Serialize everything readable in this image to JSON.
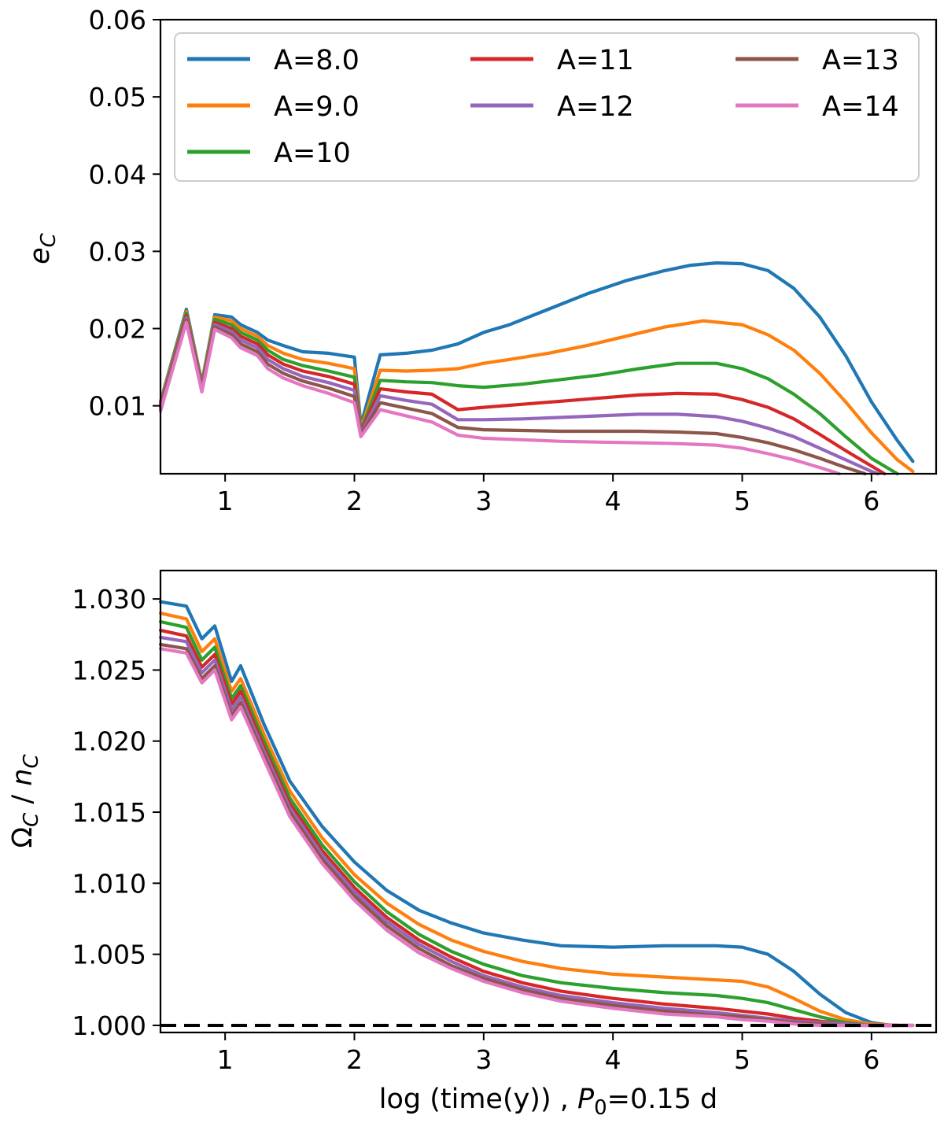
{
  "chart_data": [
    {
      "type": "line",
      "title": "",
      "xlabel": "",
      "ylabel": "e_C",
      "xlim": [
        0.5,
        6.5
      ],
      "ylim": [
        0.0012,
        0.06
      ],
      "xticks": [
        1,
        2,
        3,
        4,
        5,
        6
      ],
      "yticks": [
        0.01,
        0.02,
        0.03,
        0.04,
        0.05,
        0.06
      ],
      "ytick_labels": [
        "0.01",
        "0.02",
        "0.03",
        "0.04",
        "0.05",
        "0.06"
      ],
      "legend": {
        "location": "upper",
        "columns": 3
      },
      "grid": false,
      "series": [
        {
          "name": "A=8.0",
          "color": "#1f77b4",
          "x": [
            0.5,
            0.7,
            0.82,
            0.92,
            1.05,
            1.12,
            1.25,
            1.33,
            1.45,
            1.6,
            1.8,
            2.0,
            2.05,
            2.2,
            2.4,
            2.6,
            2.8,
            3.0,
            3.2,
            3.5,
            3.8,
            4.1,
            4.4,
            4.6,
            4.8,
            5.0,
            5.2,
            5.4,
            5.6,
            5.8,
            6.0,
            6.2,
            6.32
          ],
          "y": [
            0.0105,
            0.0225,
            0.013,
            0.0218,
            0.0215,
            0.0205,
            0.0195,
            0.0185,
            0.0178,
            0.017,
            0.0168,
            0.0163,
            0.0075,
            0.0166,
            0.0168,
            0.0172,
            0.018,
            0.0195,
            0.0205,
            0.0225,
            0.0245,
            0.0262,
            0.0275,
            0.0282,
            0.0285,
            0.0284,
            0.0275,
            0.0252,
            0.0215,
            0.0165,
            0.0105,
            0.0055,
            0.0028
          ]
        },
        {
          "name": "A=9.0",
          "color": "#ff7f0e",
          "x": [
            0.5,
            0.7,
            0.82,
            0.92,
            1.05,
            1.12,
            1.25,
            1.33,
            1.45,
            1.6,
            1.8,
            2.0,
            2.05,
            2.2,
            2.4,
            2.6,
            2.8,
            3.0,
            3.2,
            3.5,
            3.8,
            4.1,
            4.4,
            4.7,
            5.0,
            5.2,
            5.4,
            5.6,
            5.8,
            6.0,
            6.2,
            6.32
          ],
          "y": [
            0.0103,
            0.0222,
            0.0128,
            0.0215,
            0.021,
            0.02,
            0.019,
            0.0178,
            0.0168,
            0.016,
            0.0155,
            0.0148,
            0.007,
            0.0146,
            0.0145,
            0.0146,
            0.0148,
            0.0155,
            0.016,
            0.0168,
            0.0178,
            0.019,
            0.0202,
            0.021,
            0.0205,
            0.0192,
            0.0172,
            0.0142,
            0.0105,
            0.0065,
            0.003,
            0.0015
          ]
        },
        {
          "name": "A=10",
          "color": "#2ca02c",
          "x": [
            0.5,
            0.7,
            0.82,
            0.92,
            1.05,
            1.12,
            1.25,
            1.33,
            1.45,
            1.6,
            1.8,
            2.0,
            2.05,
            2.2,
            2.4,
            2.6,
            2.8,
            3.0,
            3.3,
            3.6,
            3.9,
            4.2,
            4.5,
            4.8,
            5.0,
            5.2,
            5.4,
            5.6,
            5.8,
            6.0,
            6.2
          ],
          "y": [
            0.0101,
            0.022,
            0.0126,
            0.0212,
            0.0205,
            0.0195,
            0.0185,
            0.0172,
            0.016,
            0.0152,
            0.0145,
            0.0137,
            0.0068,
            0.0133,
            0.0131,
            0.013,
            0.0126,
            0.0124,
            0.0128,
            0.0134,
            0.014,
            0.0148,
            0.0155,
            0.0155,
            0.0148,
            0.0135,
            0.0115,
            0.009,
            0.006,
            0.0032,
            0.0012
          ]
        },
        {
          "name": "A=11",
          "color": "#d62728",
          "x": [
            0.5,
            0.7,
            0.82,
            0.92,
            1.05,
            1.12,
            1.25,
            1.33,
            1.45,
            1.6,
            1.8,
            2.0,
            2.05,
            2.2,
            2.4,
            2.6,
            2.8,
            3.0,
            3.3,
            3.6,
            3.9,
            4.2,
            4.5,
            4.8,
            5.0,
            5.2,
            5.4,
            5.6,
            5.8,
            6.0,
            6.1
          ],
          "y": [
            0.0099,
            0.0217,
            0.0124,
            0.0208,
            0.02,
            0.019,
            0.018,
            0.0166,
            0.0154,
            0.0145,
            0.0138,
            0.0128,
            0.0066,
            0.0122,
            0.0118,
            0.0115,
            0.0095,
            0.0098,
            0.0102,
            0.0106,
            0.011,
            0.0114,
            0.0116,
            0.0115,
            0.0108,
            0.0098,
            0.0083,
            0.0063,
            0.0042,
            0.0022,
            0.0012
          ]
        },
        {
          "name": "A=12",
          "color": "#9467bd",
          "x": [
            0.5,
            0.7,
            0.82,
            0.92,
            1.05,
            1.12,
            1.25,
            1.33,
            1.45,
            1.6,
            1.8,
            2.0,
            2.05,
            2.2,
            2.4,
            2.6,
            2.8,
            3.0,
            3.3,
            3.6,
            3.9,
            4.2,
            4.5,
            4.8,
            5.0,
            5.2,
            5.4,
            5.6,
            5.8,
            6.0,
            6.05
          ],
          "y": [
            0.0097,
            0.0214,
            0.0122,
            0.0205,
            0.0196,
            0.0185,
            0.0175,
            0.016,
            0.0148,
            0.0138,
            0.013,
            0.012,
            0.0064,
            0.0113,
            0.0107,
            0.0102,
            0.0082,
            0.0082,
            0.0083,
            0.0085,
            0.0087,
            0.0089,
            0.0089,
            0.0086,
            0.008,
            0.0071,
            0.006,
            0.0045,
            0.003,
            0.0015,
            0.0012
          ]
        },
        {
          "name": "A=13",
          "color": "#8c564b",
          "x": [
            0.5,
            0.7,
            0.82,
            0.92,
            1.05,
            1.12,
            1.25,
            1.33,
            1.45,
            1.6,
            1.8,
            2.0,
            2.05,
            2.2,
            2.4,
            2.6,
            2.8,
            3.0,
            3.3,
            3.6,
            3.9,
            4.2,
            4.5,
            4.8,
            5.0,
            5.2,
            5.4,
            5.6,
            5.8,
            5.95
          ],
          "y": [
            0.0095,
            0.0211,
            0.012,
            0.0202,
            0.0192,
            0.018,
            0.017,
            0.0154,
            0.0142,
            0.0132,
            0.0123,
            0.0112,
            0.0062,
            0.0104,
            0.0097,
            0.009,
            0.0072,
            0.0069,
            0.0068,
            0.0067,
            0.0067,
            0.0067,
            0.0066,
            0.0064,
            0.0059,
            0.0052,
            0.0043,
            0.0032,
            0.002,
            0.0012
          ]
        },
        {
          "name": "A=14",
          "color": "#e377c2",
          "x": [
            0.5,
            0.7,
            0.82,
            0.92,
            1.05,
            1.12,
            1.25,
            1.33,
            1.45,
            1.6,
            1.8,
            2.0,
            2.05,
            2.2,
            2.4,
            2.6,
            2.8,
            3.0,
            3.3,
            3.6,
            3.9,
            4.2,
            4.5,
            4.8,
            5.0,
            5.2,
            5.4,
            5.6,
            5.75
          ],
          "y": [
            0.0093,
            0.0208,
            0.0118,
            0.0199,
            0.0188,
            0.0175,
            0.0165,
            0.0148,
            0.0136,
            0.0126,
            0.0116,
            0.0104,
            0.006,
            0.0095,
            0.0087,
            0.0079,
            0.0062,
            0.0058,
            0.0056,
            0.0054,
            0.0053,
            0.0052,
            0.0051,
            0.0049,
            0.0045,
            0.0038,
            0.003,
            0.002,
            0.0012
          ]
        }
      ]
    },
    {
      "type": "line",
      "title": "",
      "xlabel": "log (time(y)) , P0=0.15 d",
      "ylabel": "ΩC / nC",
      "xlim": [
        0.5,
        6.5
      ],
      "ylim": [
        0.9995,
        1.032
      ],
      "xticks": [
        1,
        2,
        3,
        4,
        5,
        6
      ],
      "yticks": [
        1.0,
        1.005,
        1.01,
        1.015,
        1.02,
        1.025,
        1.03
      ],
      "ytick_labels": [
        "1.000",
        "1.005",
        "1.010",
        "1.015",
        "1.020",
        "1.025",
        "1.030"
      ],
      "reference_line": {
        "y": 1.0,
        "style": "dashed",
        "color": "#000000"
      },
      "grid": false,
      "series": [
        {
          "name": "A=8.0",
          "color": "#1f77b4",
          "x": [
            0.5,
            0.7,
            0.82,
            0.92,
            1.05,
            1.12,
            1.3,
            1.5,
            1.75,
            2.0,
            2.25,
            2.5,
            2.75,
            3.0,
            3.3,
            3.6,
            4.0,
            4.4,
            4.8,
            5.0,
            5.2,
            5.4,
            5.6,
            5.8,
            6.0,
            6.15,
            6.32
          ],
          "x_note": "",
          "y": [
            1.0298,
            1.0295,
            1.0272,
            1.0281,
            1.0242,
            1.0253,
            1.0212,
            1.0172,
            1.014,
            1.0115,
            1.0095,
            1.0081,
            1.0072,
            1.0065,
            1.006,
            1.0056,
            1.0055,
            1.0056,
            1.0056,
            1.0055,
            1.005,
            1.0038,
            1.0022,
            1.0009,
            1.0002,
            1.0,
            1.0
          ]
        },
        {
          "name": "A=9.0",
          "color": "#ff7f0e",
          "x": [
            0.5,
            0.7,
            0.82,
            0.92,
            1.05,
            1.12,
            1.3,
            1.5,
            1.75,
            2.0,
            2.25,
            2.5,
            2.75,
            3.0,
            3.3,
            3.6,
            4.0,
            4.4,
            4.8,
            5.0,
            5.2,
            5.4,
            5.6,
            5.8,
            6.0,
            6.2,
            6.32
          ],
          "y": [
            1.029,
            1.0286,
            1.0263,
            1.0272,
            1.0235,
            1.0244,
            1.0205,
            1.0165,
            1.0132,
            1.0106,
            1.0086,
            1.0071,
            1.006,
            1.0052,
            1.0045,
            1.004,
            1.0036,
            1.0034,
            1.0032,
            1.0031,
            1.0027,
            1.0019,
            1.001,
            1.0004,
            1.0001,
            1.0,
            1.0
          ]
        },
        {
          "name": "A=10",
          "color": "#2ca02c",
          "x": [
            0.5,
            0.7,
            0.82,
            0.92,
            1.05,
            1.12,
            1.3,
            1.5,
            1.75,
            2.0,
            2.25,
            2.5,
            2.75,
            3.0,
            3.3,
            3.6,
            4.0,
            4.4,
            4.8,
            5.0,
            5.2,
            5.4,
            5.6,
            5.8,
            6.0,
            6.2
          ],
          "y": [
            1.0284,
            1.028,
            1.0257,
            1.0266,
            1.023,
            1.0239,
            1.02,
            1.016,
            1.0127,
            1.0101,
            1.008,
            1.0064,
            1.0052,
            1.0043,
            1.0035,
            1.003,
            1.0026,
            1.0023,
            1.0021,
            1.0019,
            1.0016,
            1.0011,
            1.0006,
            1.0002,
            1.0,
            1.0
          ]
        },
        {
          "name": "A=11",
          "color": "#d62728",
          "x": [
            0.5,
            0.7,
            0.82,
            0.92,
            1.05,
            1.12,
            1.3,
            1.5,
            1.75,
            2.0,
            2.25,
            2.5,
            2.75,
            3.0,
            3.3,
            3.6,
            4.0,
            4.4,
            4.8,
            5.0,
            5.2,
            5.4,
            5.6,
            5.8,
            6.0,
            6.2
          ],
          "y": [
            1.0278,
            1.0274,
            1.0252,
            1.0261,
            1.0226,
            1.0235,
            1.0196,
            1.0156,
            1.0123,
            1.0097,
            1.0076,
            1.006,
            1.0048,
            1.0038,
            1.003,
            1.0024,
            1.0019,
            1.0015,
            1.0012,
            1.001,
            1.0008,
            1.0005,
            1.0003,
            1.0001,
            1.0,
            1.0
          ]
        },
        {
          "name": "A=12",
          "color": "#9467bd",
          "x": [
            0.5,
            0.7,
            0.82,
            0.92,
            1.05,
            1.12,
            1.3,
            1.5,
            1.75,
            2.0,
            2.25,
            2.5,
            2.75,
            3.0,
            3.3,
            3.6,
            4.0,
            4.4,
            4.8,
            5.0,
            5.2,
            5.4,
            5.6,
            5.8,
            6.0,
            6.2
          ],
          "y": [
            1.0273,
            1.027,
            1.0248,
            1.0257,
            1.0222,
            1.0231,
            1.0193,
            1.0153,
            1.012,
            1.0094,
            1.0073,
            1.0057,
            1.0045,
            1.0035,
            1.0027,
            1.0021,
            1.0016,
            1.0012,
            1.0009,
            1.0007,
            1.0005,
            1.0003,
            1.0002,
            1.0001,
            1.0,
            1.0
          ]
        },
        {
          "name": "A=13",
          "color": "#8c564b",
          "x": [
            0.5,
            0.7,
            0.82,
            0.92,
            1.05,
            1.12,
            1.3,
            1.5,
            1.75,
            2.0,
            2.25,
            2.5,
            2.75,
            3.0,
            3.3,
            3.6,
            4.0,
            4.4,
            4.8,
            5.0,
            5.2,
            5.4,
            5.6,
            5.8,
            6.0,
            6.2
          ],
          "y": [
            1.0268,
            1.0265,
            1.0244,
            1.0253,
            1.0218,
            1.0227,
            1.019,
            1.015,
            1.0117,
            1.0091,
            1.007,
            1.0054,
            1.0042,
            1.0033,
            1.0025,
            1.0019,
            1.0014,
            1.001,
            1.0007,
            1.0006,
            1.0004,
            1.0002,
            1.0001,
            1.0,
            1.0,
            1.0
          ]
        },
        {
          "name": "A=14",
          "color": "#e377c2",
          "x": [
            0.5,
            0.7,
            0.82,
            0.92,
            1.05,
            1.12,
            1.3,
            1.5,
            1.75,
            2.0,
            2.25,
            2.5,
            2.75,
            3.0,
            3.3,
            3.6,
            4.0,
            4.4,
            4.8,
            5.0,
            5.2,
            5.4,
            5.6,
            5.8,
            6.0,
            6.32
          ],
          "y": [
            1.0265,
            1.0262,
            1.0241,
            1.025,
            1.0215,
            1.0224,
            1.0187,
            1.0147,
            1.0114,
            1.0088,
            1.0067,
            1.0051,
            1.004,
            1.0031,
            1.0023,
            1.0017,
            1.0012,
            1.0008,
            1.0006,
            1.0004,
            1.0003,
            1.0001,
            1.0,
            1.0,
            1.0,
            1.0
          ]
        }
      ]
    }
  ]
}
